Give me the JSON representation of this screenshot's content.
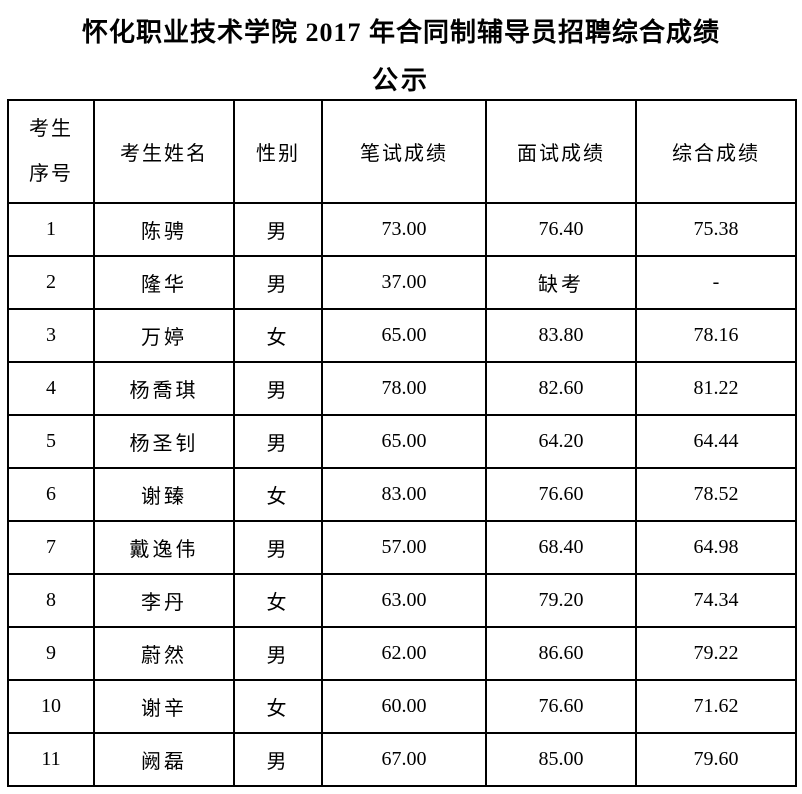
{
  "page": {
    "title_line1": "怀化职业技术学院 2017 年合同制辅导员招聘综合成绩",
    "title_line2": "公示"
  },
  "table": {
    "columns": {
      "seq": "考生序号",
      "name": "考生姓名",
      "gender": "性别",
      "written": "笔试成绩",
      "interview": "面试成绩",
      "overall": "综合成绩"
    },
    "rows": [
      {
        "seq": "1",
        "name": "陈骋",
        "gender": "男",
        "written": "73.00",
        "interview": "76.40",
        "overall": "75.38"
      },
      {
        "seq": "2",
        "name": "隆华",
        "gender": "男",
        "written": "37.00",
        "interview": "缺考",
        "overall": "-"
      },
      {
        "seq": "3",
        "name": "万婷",
        "gender": "女",
        "written": "65.00",
        "interview": "83.80",
        "overall": "78.16"
      },
      {
        "seq": "4",
        "name": "杨喬琪",
        "gender": "男",
        "written": "78.00",
        "interview": "82.60",
        "overall": "81.22"
      },
      {
        "seq": "5",
        "name": "杨圣钊",
        "gender": "男",
        "written": "65.00",
        "interview": "64.20",
        "overall": "64.44"
      },
      {
        "seq": "6",
        "name": "谢臻",
        "gender": "女",
        "written": "83.00",
        "interview": "76.60",
        "overall": "78.52"
      },
      {
        "seq": "7",
        "name": "戴逸伟",
        "gender": "男",
        "written": "57.00",
        "interview": "68.40",
        "overall": "64.98"
      },
      {
        "seq": "8",
        "name": "李丹",
        "gender": "女",
        "written": "63.00",
        "interview": "79.20",
        "overall": "74.34"
      },
      {
        "seq": "9",
        "name": "蔚然",
        "gender": "男",
        "written": "62.00",
        "interview": "86.60",
        "overall": "79.22"
      },
      {
        "seq": "10",
        "name": "谢辛",
        "gender": "女",
        "written": "60.00",
        "interview": "76.60",
        "overall": "71.62"
      },
      {
        "seq": "11",
        "name": "阙磊",
        "gender": "男",
        "written": "67.00",
        "interview": "85.00",
        "overall": "79.60"
      }
    ]
  }
}
